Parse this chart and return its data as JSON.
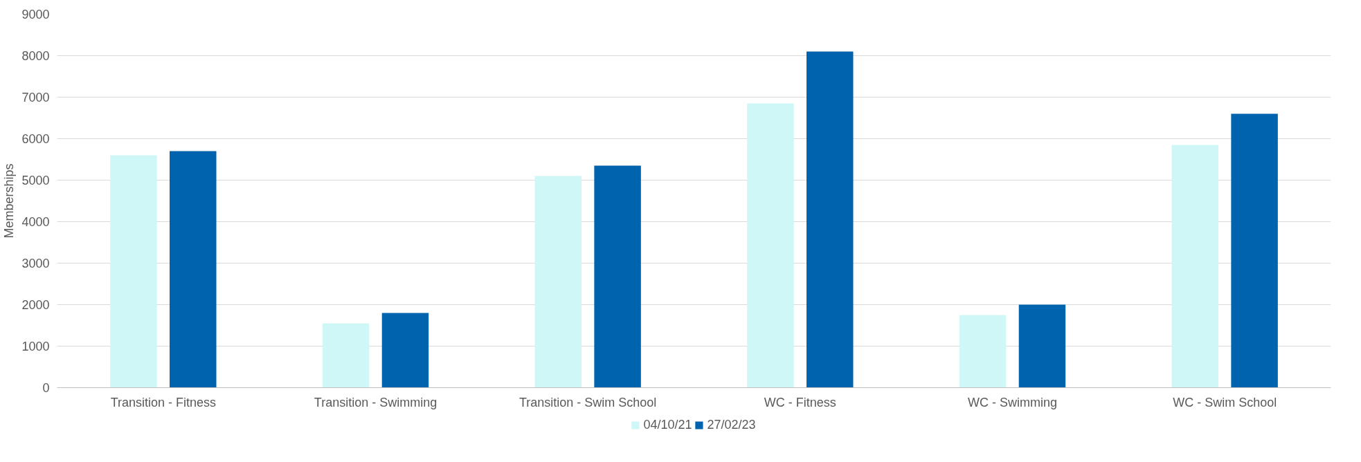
{
  "chart_data": {
    "type": "bar",
    "ylabel": "Memberships",
    "categories": [
      "Transition - Fitness",
      "Transition - Swimming",
      "Transition - Swim School",
      "WC - Fitness",
      "WC - Swimming",
      "WC - Swim School"
    ],
    "series": [
      {
        "name": "04/10/21",
        "color": "#cff7f7",
        "values": [
          5600,
          1550,
          5100,
          6850,
          1750,
          5850
        ]
      },
      {
        "name": "27/02/23",
        "color": "#0063ad",
        "values": [
          5700,
          1800,
          5350,
          8100,
          2000,
          6600
        ]
      }
    ],
    "ylim": [
      0,
      9000
    ],
    "yticks": [
      0,
      1000,
      2000,
      3000,
      4000,
      5000,
      6000,
      7000,
      8000,
      9000
    ],
    "grid": "y",
    "legend": "bottom"
  }
}
